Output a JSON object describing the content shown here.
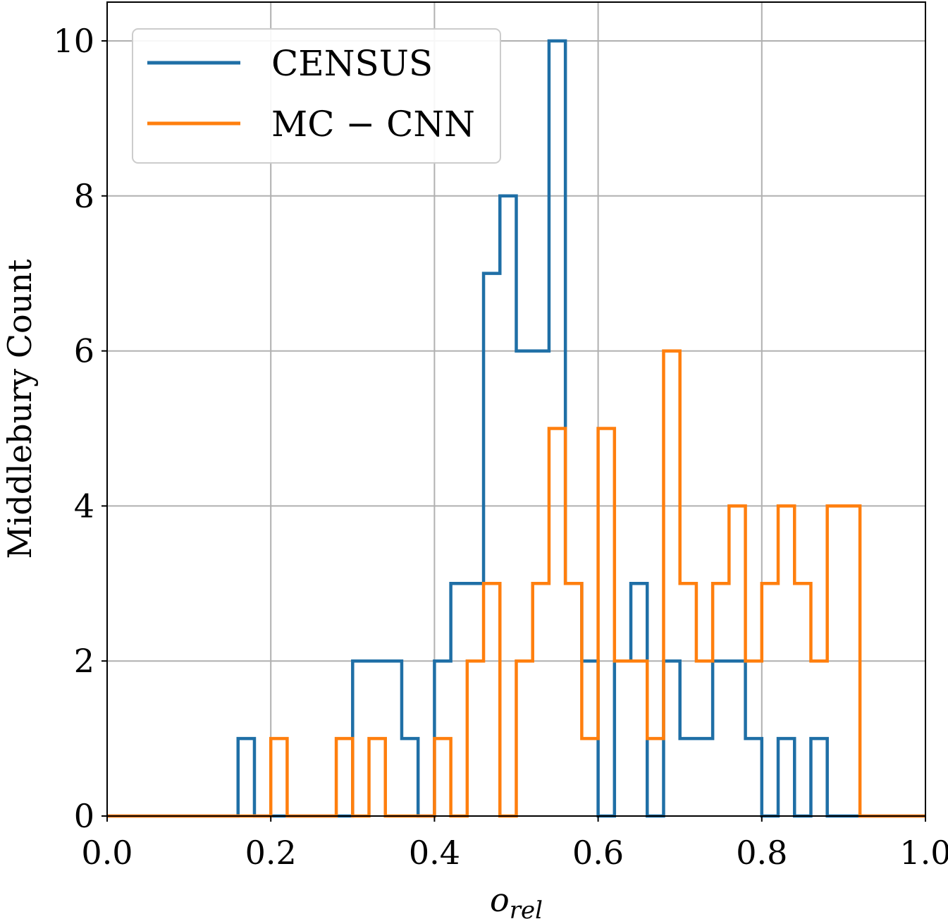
{
  "chart_data": {
    "type": "histogram",
    "xlabel_base": "o",
    "xlabel_sub": "rel",
    "ylabel": "Middlebury Count",
    "xlim": [
      0.0,
      1.0
    ],
    "ylim": [
      0,
      10.5
    ],
    "grid": true,
    "legend_position": "top-left",
    "x_ticks": [
      0.0,
      0.2,
      0.4,
      0.6,
      0.8,
      1.0
    ],
    "x_tick_labels": [
      "0.0",
      "0.2",
      "0.4",
      "0.6",
      "0.8",
      "1.0"
    ],
    "y_ticks": [
      0,
      2,
      4,
      6,
      8,
      10
    ],
    "y_tick_labels": [
      "0",
      "2",
      "4",
      "6",
      "8",
      "10"
    ],
    "bin_edges": [
      0.0,
      0.02,
      0.04,
      0.06,
      0.08,
      0.1,
      0.12,
      0.14,
      0.16,
      0.18,
      0.2,
      0.22,
      0.24,
      0.26,
      0.28,
      0.3,
      0.32,
      0.34,
      0.36,
      0.38,
      0.4,
      0.42,
      0.44,
      0.46,
      0.48,
      0.5,
      0.52,
      0.54,
      0.56,
      0.58,
      0.6,
      0.62,
      0.64,
      0.66,
      0.68,
      0.7,
      0.72,
      0.74,
      0.76,
      0.78,
      0.8,
      0.82,
      0.84,
      0.86,
      0.88,
      0.9,
      0.92,
      0.94,
      0.96,
      0.98,
      1.0
    ],
    "series": [
      {
        "name": "CENSUS",
        "color": "#1f6fa6",
        "counts": [
          0,
          0,
          0,
          0,
          0,
          0,
          0,
          0,
          1,
          0,
          0,
          0,
          0,
          0,
          0,
          2,
          2,
          2,
          1,
          0,
          2,
          3,
          3,
          7,
          8,
          6,
          6,
          10,
          3,
          2,
          0,
          2,
          3,
          0,
          2,
          1,
          1,
          2,
          2,
          1,
          0,
          1,
          0,
          1,
          0,
          0,
          0,
          0,
          0,
          0
        ]
      },
      {
        "name": "MC − CNN",
        "color": "#ff7f0e",
        "counts": [
          0,
          0,
          0,
          0,
          0,
          0,
          0,
          0,
          0,
          0,
          1,
          0,
          0,
          0,
          1,
          0,
          1,
          0,
          0,
          0,
          1,
          0,
          2,
          3,
          0,
          2,
          3,
          5,
          3,
          1,
          5,
          2,
          2,
          1,
          6,
          3,
          2,
          3,
          4,
          2,
          3,
          4,
          3,
          2,
          4,
          4,
          0,
          0,
          0,
          0
        ]
      }
    ]
  }
}
